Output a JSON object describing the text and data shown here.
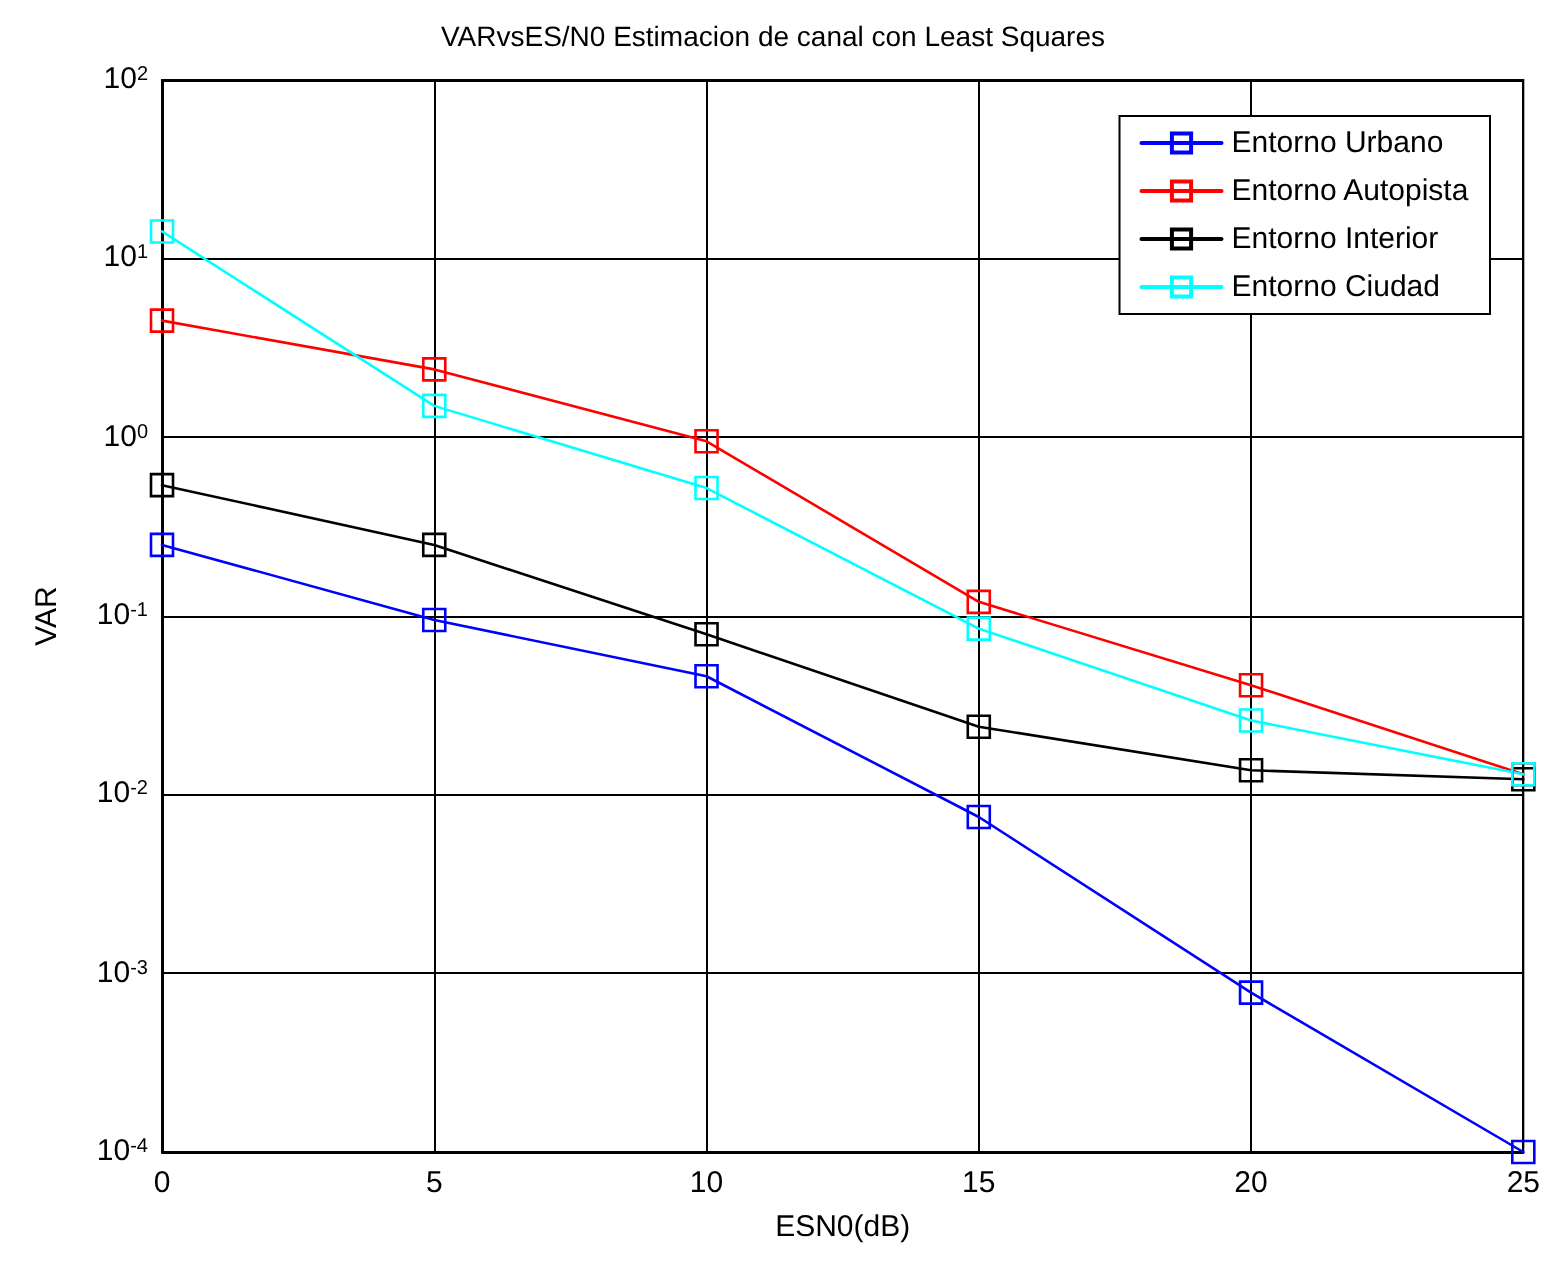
{
  "chart_data": {
    "type": "line",
    "title": "VARvsES/N0 Estimacion de canal con Least Squares",
    "xlabel": "ESN0(dB)",
    "ylabel": "VAR",
    "x": [
      0,
      5,
      10,
      15,
      20,
      25
    ],
    "series": [
      {
        "name": "Entorno Urbano",
        "color": "#0000ff",
        "values": [
          0.25,
          0.095,
          0.046,
          0.0075,
          0.00078,
          0.0001
        ]
      },
      {
        "name": "Entorno Autopista",
        "color": "#ff0000",
        "values": [
          4.5,
          2.4,
          0.95,
          0.12,
          0.041,
          0.013
        ]
      },
      {
        "name": "Entorno Interior",
        "color": "#000000",
        "values": [
          0.54,
          0.25,
          0.079,
          0.024,
          0.0137,
          0.0122
        ]
      },
      {
        "name": "Entorno Ciudad",
        "color": "#00ffff",
        "values": [
          14.2,
          1.5,
          0.52,
          0.085,
          0.026,
          0.013
        ]
      }
    ],
    "xlim": [
      0,
      25
    ],
    "xticks": [
      0,
      5,
      10,
      15,
      20,
      25
    ],
    "ylim": [
      0.0001,
      100
    ],
    "yticks": [
      {
        "value": 0.0001,
        "label": "10$^{-4}$"
      },
      {
        "value": 0.001,
        "label": "10$^{-3}$"
      },
      {
        "value": 0.01,
        "label": "10$^{-2}$"
      },
      {
        "value": 0.1,
        "label": "10$^{-1}$"
      },
      {
        "value": 1,
        "label": "10$^{0}$"
      },
      {
        "value": 10,
        "label": "10$^{1}$"
      },
      {
        "value": 100,
        "label": "10$^{2}$"
      }
    ],
    "log": "y",
    "grid": true,
    "legend": "top right",
    "marker": "square",
    "line_style": "solid"
  }
}
